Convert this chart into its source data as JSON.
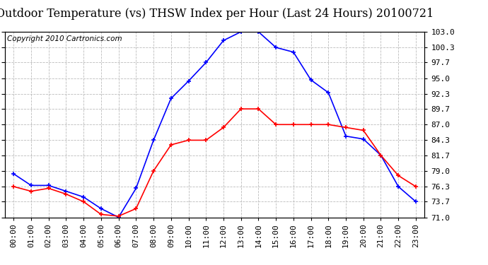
{
  "title": "Outdoor Temperature (vs) THSW Index per Hour (Last 24 Hours) 20100721",
  "copyright": "Copyright 2010 Cartronics.com",
  "hours": [
    "00:00",
    "01:00",
    "02:00",
    "03:00",
    "04:00",
    "05:00",
    "06:00",
    "07:00",
    "08:00",
    "09:00",
    "10:00",
    "11:00",
    "12:00",
    "13:00",
    "14:00",
    "15:00",
    "16:00",
    "17:00",
    "18:00",
    "19:00",
    "20:00",
    "21:00",
    "22:00",
    "23:00"
  ],
  "thsw": [
    78.5,
    76.5,
    76.5,
    75.5,
    74.5,
    72.5,
    71.0,
    76.0,
    84.3,
    91.5,
    94.5,
    97.7,
    101.5,
    103.0,
    103.0,
    100.3,
    99.5,
    94.7,
    92.5,
    85.0,
    84.5,
    81.7,
    76.3,
    73.7
  ],
  "temp": [
    76.3,
    75.5,
    76.0,
    75.0,
    73.7,
    71.5,
    71.2,
    72.5,
    79.0,
    83.5,
    84.3,
    84.3,
    86.5,
    89.7,
    89.7,
    87.0,
    87.0,
    87.0,
    87.0,
    86.5,
    86.0,
    81.7,
    78.2,
    76.3
  ],
  "blue_color": "#0000FF",
  "red_color": "#FF0000",
  "bg_color": "#FFFFFF",
  "plot_bg": "#FFFFFF",
  "grid_color": "#BBBBBB",
  "title_color": "#000000",
  "ylim": [
    71.0,
    103.0
  ],
  "yticks": [
    71.0,
    73.7,
    76.3,
    79.0,
    81.7,
    84.3,
    87.0,
    89.7,
    92.3,
    95.0,
    97.7,
    100.3,
    103.0
  ],
  "title_fontsize": 11.5,
  "copyright_fontsize": 7.5,
  "tick_fontsize": 8
}
